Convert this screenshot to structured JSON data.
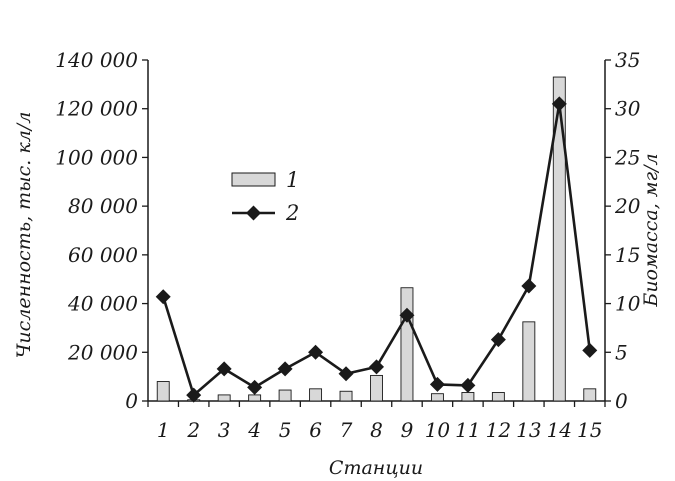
{
  "chart_data": {
    "type": "bar+line",
    "title": "",
    "xlabel": "Станции",
    "ylabel_left": "Численность, тыс. кл/л",
    "ylabel_right": "Биомасса, мг/л",
    "categories": [
      "1",
      "2",
      "3",
      "4",
      "5",
      "6",
      "7",
      "8",
      "9",
      "10",
      "11",
      "12",
      "13",
      "14",
      "15"
    ],
    "y_left_ticks": [
      "0",
      "20 000",
      "40 000",
      "60 000",
      "80 000",
      "100 000",
      "120 000",
      "140 000"
    ],
    "y_right_ticks": [
      "0",
      "5",
      "10",
      "15",
      "20",
      "25",
      "30",
      "35"
    ],
    "ylim_left": [
      0,
      140000
    ],
    "ylim_right": [
      0,
      35
    ],
    "grid": false,
    "legend_position": "upper-left",
    "series": [
      {
        "name": "1",
        "type": "bar",
        "axis": "left",
        "color": "#d8d8d8",
        "values": [
          8000,
          500,
          2500,
          2500,
          4500,
          5000,
          4000,
          10500,
          46500,
          3000,
          3500,
          3500,
          32500,
          133000,
          5000
        ]
      },
      {
        "name": "2",
        "type": "line",
        "axis": "right",
        "marker": "diamond",
        "color": "#1a1a1a",
        "values": [
          10.7,
          0.6,
          3.3,
          1.4,
          3.3,
          5.0,
          2.8,
          3.5,
          8.8,
          1.7,
          1.6,
          6.3,
          11.8,
          30.5,
          5.2
        ]
      }
    ]
  }
}
